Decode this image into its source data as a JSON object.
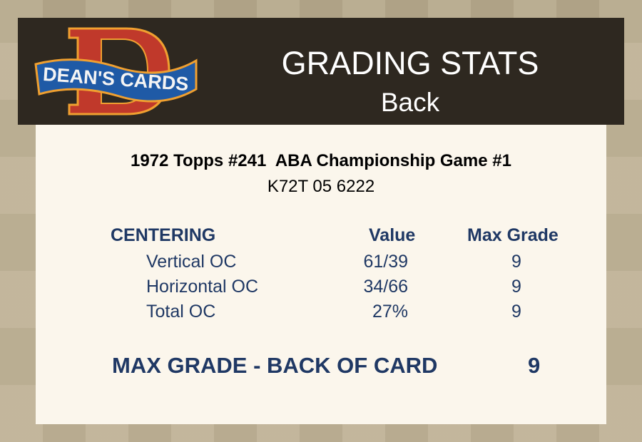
{
  "header": {
    "logo_text": "DEAN'S CARDS",
    "title": "GRADING STATS",
    "subtitle": "Back"
  },
  "card": {
    "title": "1972 Topps #241  ABA Championship Game #1",
    "cert": "K72T 05 6222"
  },
  "table": {
    "section": "CENTERING",
    "col_value": "Value",
    "col_max": "Max Grade",
    "rows": [
      {
        "label": "Vertical OC",
        "value": "61/39",
        "max": "9"
      },
      {
        "label": "Horizontal OC",
        "value": "34/66",
        "max": "9"
      },
      {
        "label": "Total OC",
        "value": "27%",
        "max": "9"
      }
    ]
  },
  "final": {
    "label": "MAX GRADE - BACK OF CARD",
    "value": "9"
  },
  "colors": {
    "header_bg": "#2e2820",
    "panel_bg": "#fbf6ec",
    "navy": "#1f3864",
    "logo_red": "#c0392b",
    "logo_blue": "#1f5aa6",
    "logo_orange": "#f0a030"
  }
}
